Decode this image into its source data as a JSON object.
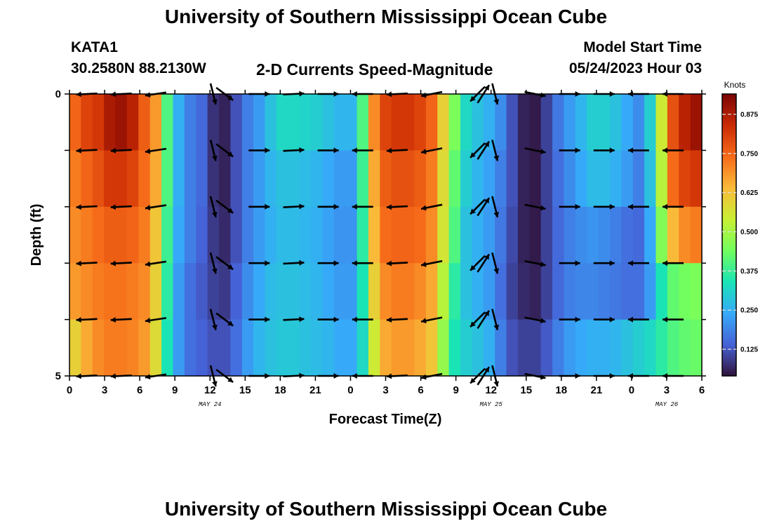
{
  "page": {
    "title": "University of Southern Mississippi Ocean Cube",
    "bottom_title": "University of Southern Mississippi Ocean Cube"
  },
  "header": {
    "station": "KATA1",
    "coords": "30.2580N  88.2130W",
    "subtitle": "2-D Currents Speed-Magnitude",
    "model_label": "Model Start Time",
    "model_time": "05/24/2023 Hour 03"
  },
  "chart_data": {
    "type": "heatmap",
    "title": "2-D Currents Speed-Magnitude",
    "xlabel": "Forecast Time(Z)",
    "ylabel": "Depth (ft)",
    "colorbar_label": "Knots",
    "x_tick_labels": [
      "0",
      "3",
      "6",
      "9",
      "12",
      "15",
      "18",
      "21",
      "0",
      "3",
      "6",
      "9",
      "12",
      "15",
      "18",
      "21",
      "0",
      "3",
      "6"
    ],
    "date_labels": [
      {
        "text": "MAY 24",
        "at_tick": 4
      },
      {
        "text": "MAY 25",
        "at_tick": 12
      },
      {
        "text": "MAY 26",
        "at_tick": 17
      }
    ],
    "y_tick_labels": [
      "0",
      "",
      "",
      "",
      "",
      "5"
    ],
    "ylim": [
      0,
      5
    ],
    "colorbar_ticks": [
      "0.125",
      "0.250",
      "0.375",
      "0.500",
      "0.625",
      "0.750",
      "0.875"
    ],
    "colorbar_range": [
      0.04,
      0.94
    ],
    "hours": [
      0,
      1,
      2,
      3,
      4,
      5,
      6,
      7,
      8,
      9,
      10,
      11,
      12,
      13,
      14,
      15,
      16,
      17,
      18,
      19,
      20,
      21,
      22,
      23,
      24,
      25,
      26,
      27,
      28,
      29,
      30,
      31,
      32,
      33,
      34,
      35,
      36,
      37,
      38,
      39,
      40,
      41,
      42,
      43,
      44,
      45,
      46,
      47,
      48,
      49,
      50,
      51,
      52,
      53,
      54
    ],
    "depth_rows": [
      "0-1",
      "1-2",
      "2-3",
      "3-4",
      "4-5"
    ],
    "speed": [
      [
        0.75,
        0.8,
        0.82,
        0.88,
        0.9,
        0.86,
        0.76,
        0.68,
        0.4,
        0.25,
        0.18,
        0.15,
        0.08,
        0.06,
        0.12,
        0.18,
        0.22,
        0.28,
        0.32,
        0.32,
        0.31,
        0.3,
        0.28,
        0.26,
        0.26,
        0.4,
        0.7,
        0.8,
        0.82,
        0.82,
        0.8,
        0.75,
        0.6,
        0.45,
        0.32,
        0.28,
        0.25,
        0.2,
        0.12,
        0.06,
        0.05,
        0.1,
        0.17,
        0.22,
        0.26,
        0.3,
        0.3,
        0.28,
        0.24,
        0.2,
        0.3,
        0.55,
        0.78,
        0.86,
        0.9
      ],
      [
        0.72,
        0.75,
        0.78,
        0.82,
        0.82,
        0.8,
        0.74,
        0.66,
        0.4,
        0.25,
        0.18,
        0.15,
        0.08,
        0.06,
        0.12,
        0.18,
        0.22,
        0.26,
        0.28,
        0.28,
        0.27,
        0.26,
        0.24,
        0.22,
        0.22,
        0.38,
        0.66,
        0.76,
        0.78,
        0.78,
        0.76,
        0.72,
        0.58,
        0.42,
        0.3,
        0.26,
        0.23,
        0.18,
        0.12,
        0.06,
        0.05,
        0.1,
        0.16,
        0.2,
        0.24,
        0.27,
        0.27,
        0.25,
        0.22,
        0.18,
        0.28,
        0.52,
        0.74,
        0.8,
        0.82
      ],
      [
        0.7,
        0.72,
        0.74,
        0.76,
        0.76,
        0.75,
        0.72,
        0.62,
        0.38,
        0.24,
        0.18,
        0.14,
        0.09,
        0.07,
        0.12,
        0.18,
        0.22,
        0.25,
        0.27,
        0.27,
        0.26,
        0.25,
        0.23,
        0.21,
        0.21,
        0.36,
        0.64,
        0.74,
        0.75,
        0.75,
        0.74,
        0.7,
        0.56,
        0.4,
        0.28,
        0.25,
        0.22,
        0.17,
        0.11,
        0.06,
        0.05,
        0.1,
        0.15,
        0.18,
        0.2,
        0.21,
        0.2,
        0.18,
        0.16,
        0.15,
        0.24,
        0.46,
        0.64,
        0.7,
        0.72
      ],
      [
        0.68,
        0.7,
        0.72,
        0.73,
        0.73,
        0.72,
        0.7,
        0.6,
        0.36,
        0.22,
        0.16,
        0.13,
        0.1,
        0.09,
        0.14,
        0.2,
        0.24,
        0.27,
        0.28,
        0.28,
        0.27,
        0.26,
        0.24,
        0.22,
        0.22,
        0.34,
        0.6,
        0.7,
        0.72,
        0.72,
        0.7,
        0.66,
        0.52,
        0.36,
        0.28,
        0.25,
        0.22,
        0.16,
        0.1,
        0.07,
        0.06,
        0.1,
        0.15,
        0.18,
        0.19,
        0.19,
        0.18,
        0.17,
        0.16,
        0.16,
        0.22,
        0.34,
        0.42,
        0.44,
        0.45
      ],
      [
        0.6,
        0.66,
        0.7,
        0.72,
        0.72,
        0.71,
        0.68,
        0.58,
        0.34,
        0.22,
        0.16,
        0.14,
        0.12,
        0.12,
        0.16,
        0.22,
        0.26,
        0.28,
        0.29,
        0.29,
        0.28,
        0.27,
        0.26,
        0.24,
        0.24,
        0.32,
        0.55,
        0.66,
        0.68,
        0.68,
        0.66,
        0.62,
        0.48,
        0.34,
        0.3,
        0.28,
        0.25,
        0.18,
        0.12,
        0.1,
        0.1,
        0.13,
        0.18,
        0.22,
        0.24,
        0.25,
        0.25,
        0.26,
        0.28,
        0.3,
        0.32,
        0.36,
        0.4,
        0.42,
        0.43
      ]
    ],
    "vectors": [
      {
        "hour": 1.5,
        "u": -1,
        "v": 0.05
      },
      {
        "hour": 4.5,
        "u": -1,
        "v": 0.05
      },
      {
        "hour": 7.5,
        "u": -1,
        "v": 0.15
      },
      {
        "hour": 12.5,
        "u": 0.25,
        "v": 1
      },
      {
        "hour": 13.5,
        "u": 0.8,
        "v": 0.6
      },
      {
        "hour": 16.5,
        "u": 1,
        "v": 0
      },
      {
        "hour": 19.5,
        "u": 1,
        "v": -0.05
      },
      {
        "hour": 22.5,
        "u": 1,
        "v": 0
      },
      {
        "hour": 25.5,
        "u": -1,
        "v": 0
      },
      {
        "hour": 28.5,
        "u": -1,
        "v": 0.05
      },
      {
        "hour": 31.5,
        "u": -1,
        "v": 0.2
      },
      {
        "hour": 35.5,
        "u": -0.7,
        "v": 0.7
      },
      {
        "hour": 36,
        "u": 0.55,
        "v": -0.85
      },
      {
        "hour": 37,
        "u": 0.25,
        "v": 1
      },
      {
        "hour": 40.5,
        "u": 1,
        "v": 0.2
      },
      {
        "hour": 43.5,
        "u": 1,
        "v": 0
      },
      {
        "hour": 46.5,
        "u": 1,
        "v": 0
      },
      {
        "hour": 49.5,
        "u": -1,
        "v": 0
      },
      {
        "hour": 52.5,
        "u": -1,
        "v": 0
      }
    ],
    "colors": {
      "scale": [
        "#30123b",
        "#4662d7",
        "#36aaf9",
        "#1ae4b6",
        "#72fe5e",
        "#c8ef34",
        "#faba39",
        "#f66b19",
        "#ca2a04",
        "#7a0403"
      ],
      "arrow": "#000000",
      "axis": "#000000"
    }
  }
}
